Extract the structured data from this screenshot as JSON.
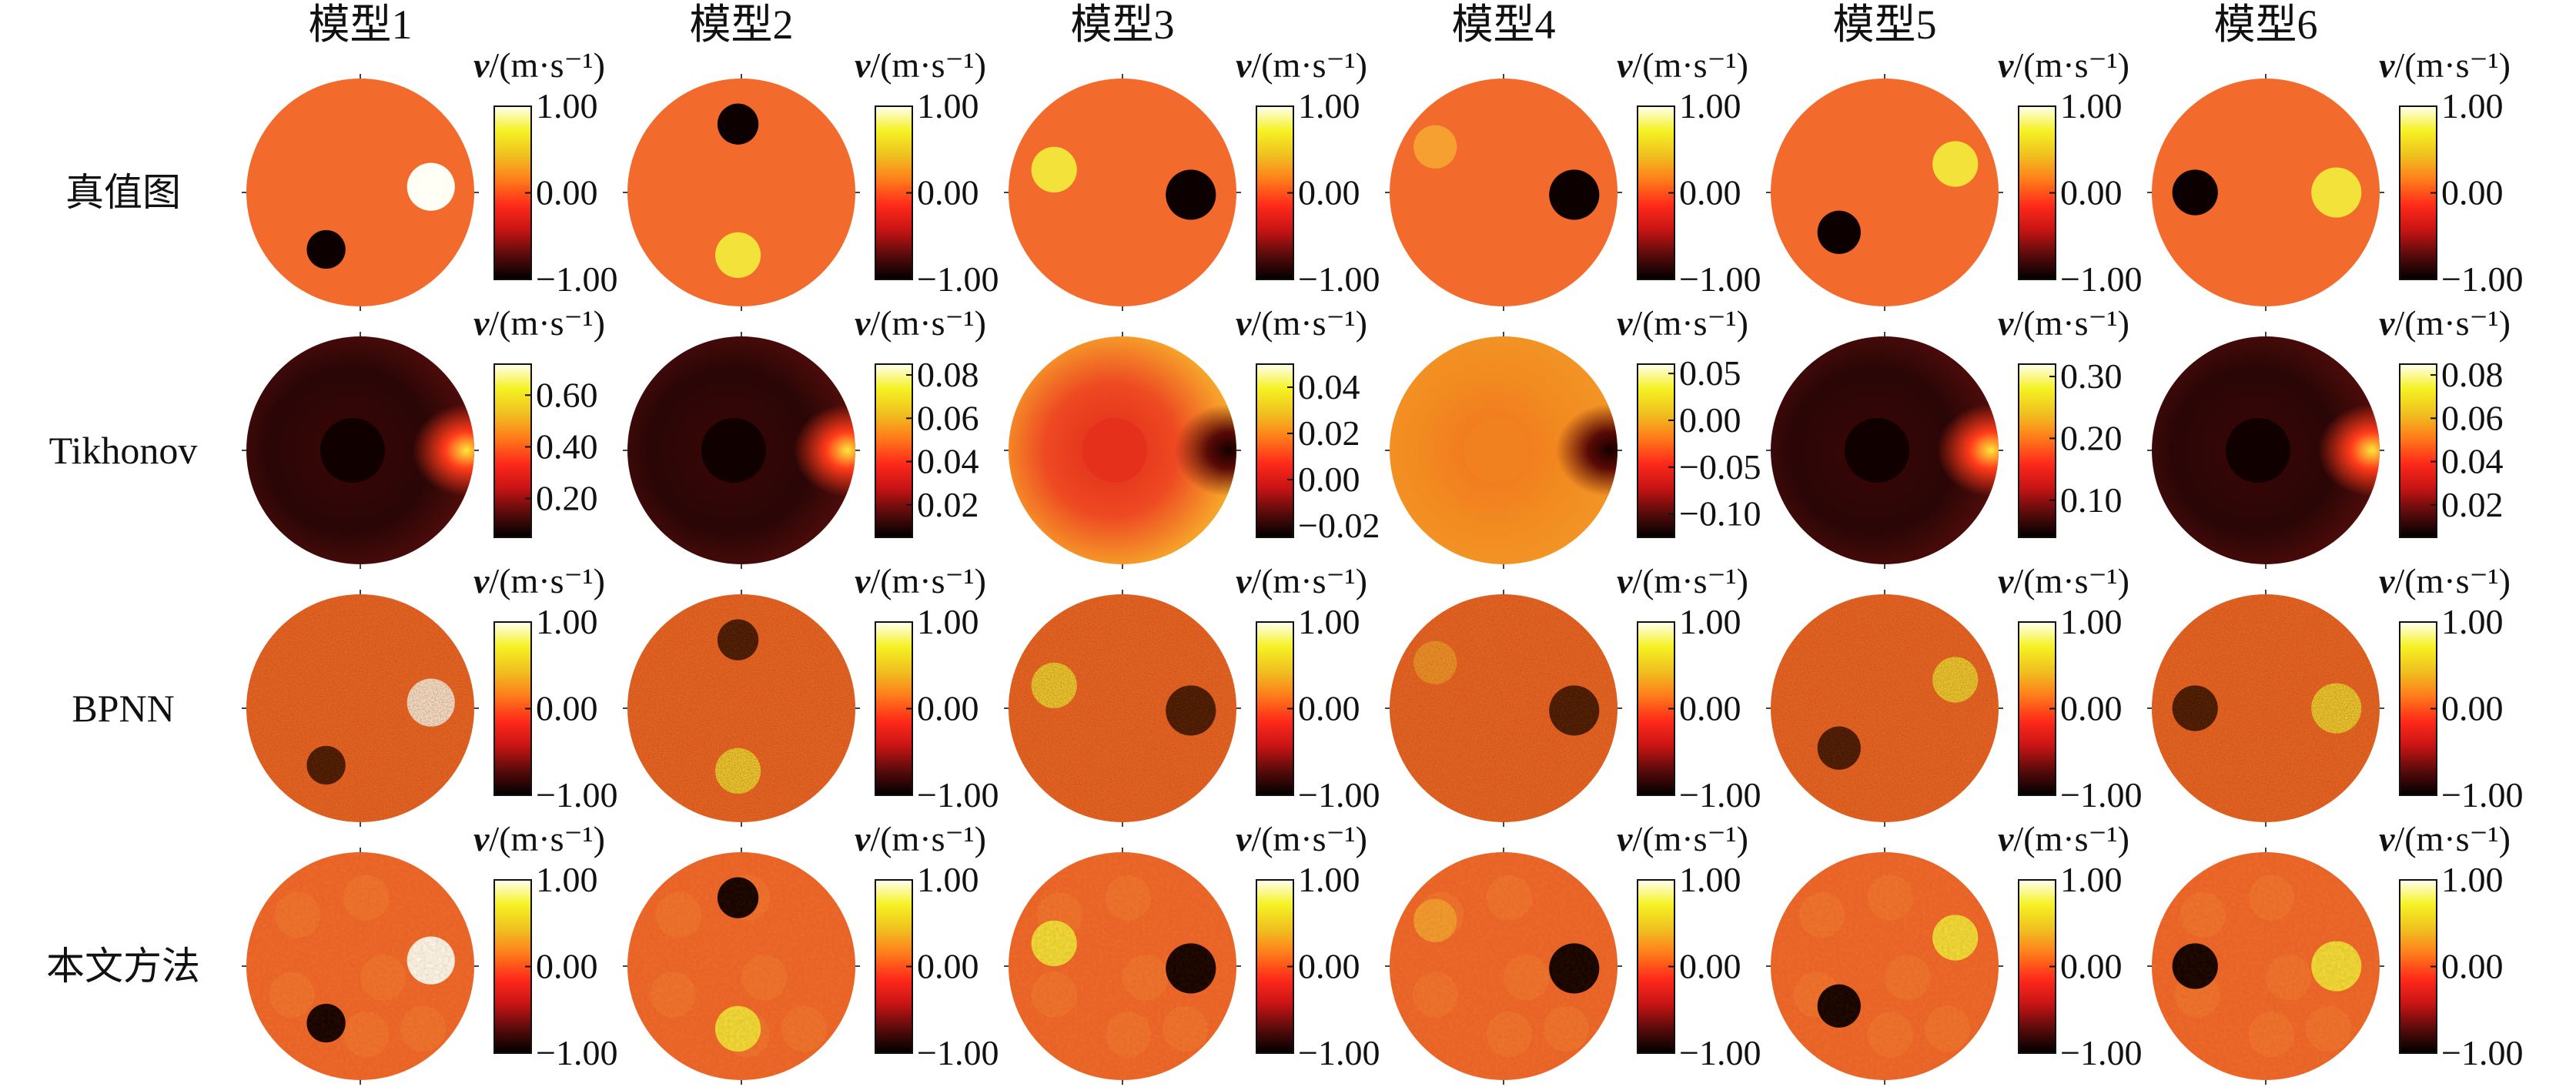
{
  "colors": {
    "background": "#f26a2c",
    "colormap": [
      "#000000",
      "#5a0b0b",
      "#c81414",
      "#ff2a1a",
      "#ff7a1a",
      "#f0c020",
      "#f5f222",
      "#fffff2"
    ]
  },
  "columns": [
    "模型1",
    "模型2",
    "模型3",
    "模型4",
    "模型5",
    "模型6"
  ],
  "rows": [
    {
      "label": "真值图",
      "method": "truth"
    },
    {
      "label": "Tikhonov",
      "method": "tikhonov"
    },
    {
      "label": "BPNN",
      "method": "bpnn"
    },
    {
      "label": "本文方法",
      "method": "proposed"
    }
  ],
  "colorbar_title": {
    "symbol": "v",
    "unit": "/(m·s⁻¹)"
  },
  "panels": [
    [
      {
        "ticks": [
          "1.00",
          "0.00",
          "−1.00"
        ],
        "range": [
          -1,
          1
        ],
        "tick_values": [
          1,
          0,
          -1
        ]
      },
      {
        "ticks": [
          "1.00",
          "0.00",
          "−1.00"
        ],
        "range": [
          -1,
          1
        ],
        "tick_values": [
          1,
          0,
          -1
        ]
      },
      {
        "ticks": [
          "1.00",
          "0.00",
          "−1.00"
        ],
        "range": [
          -1,
          1
        ],
        "tick_values": [
          1,
          0,
          -1
        ]
      },
      {
        "ticks": [
          "1.00",
          "0.00",
          "−1.00"
        ],
        "range": [
          -1,
          1
        ],
        "tick_values": [
          1,
          0,
          -1
        ]
      },
      {
        "ticks": [
          "1.00",
          "0.00",
          "−1.00"
        ],
        "range": [
          -1,
          1
        ],
        "tick_values": [
          1,
          0,
          -1
        ]
      },
      {
        "ticks": [
          "1.00",
          "0.00",
          "−1.00"
        ],
        "range": [
          -1,
          1
        ],
        "tick_values": [
          1,
          0,
          -1
        ]
      }
    ],
    [
      {
        "ticks": [
          "0.60",
          "0.40",
          "0.20"
        ],
        "range": [
          0.05,
          0.72
        ],
        "tick_values": [
          0.6,
          0.4,
          0.2
        ]
      },
      {
        "ticks": [
          "0.08",
          "0.06",
          "0.04",
          "0.02"
        ],
        "range": [
          0.005,
          0.085
        ],
        "tick_values": [
          0.08,
          0.06,
          0.04,
          0.02
        ]
      },
      {
        "ticks": [
          "0.04",
          "0.02",
          "0.00",
          "−0.02"
        ],
        "range": [
          -0.025,
          0.05
        ],
        "tick_values": [
          0.04,
          0.02,
          0.0,
          -0.02
        ]
      },
      {
        "ticks": [
          "0.05",
          "0.00",
          "−0.05",
          "−0.10"
        ],
        "range": [
          -0.125,
          0.06
        ],
        "tick_values": [
          0.05,
          0.0,
          -0.05,
          -0.1
        ]
      },
      {
        "ticks": [
          "0.30",
          "0.20",
          "0.10"
        ],
        "range": [
          0.04,
          0.32
        ],
        "tick_values": [
          0.3,
          0.2,
          0.1
        ]
      },
      {
        "ticks": [
          "0.08",
          "0.06",
          "0.04",
          "0.02"
        ],
        "range": [
          0.005,
          0.085
        ],
        "tick_values": [
          0.08,
          0.06,
          0.04,
          0.02
        ]
      }
    ],
    [
      {
        "ticks": [
          "1.00",
          "0.00",
          "−1.00"
        ],
        "range": [
          -1,
          1
        ],
        "tick_values": [
          1,
          0,
          -1
        ]
      },
      {
        "ticks": [
          "1.00",
          "0.00",
          "−1.00"
        ],
        "range": [
          -1,
          1
        ],
        "tick_values": [
          1,
          0,
          -1
        ]
      },
      {
        "ticks": [
          "1.00",
          "0.00",
          "−1.00"
        ],
        "range": [
          -1,
          1
        ],
        "tick_values": [
          1,
          0,
          -1
        ]
      },
      {
        "ticks": [
          "1.00",
          "0.00",
          "−1.00"
        ],
        "range": [
          -1,
          1
        ],
        "tick_values": [
          1,
          0,
          -1
        ]
      },
      {
        "ticks": [
          "1.00",
          "0.00",
          "−1.00"
        ],
        "range": [
          -1,
          1
        ],
        "tick_values": [
          1,
          0,
          -1
        ]
      },
      {
        "ticks": [
          "1.00",
          "0.00",
          "−1.00"
        ],
        "range": [
          -1,
          1
        ],
        "tick_values": [
          1,
          0,
          -1
        ]
      }
    ],
    [
      {
        "ticks": [
          "1.00",
          "0.00",
          "−1.00"
        ],
        "range": [
          -1,
          1
        ],
        "tick_values": [
          1,
          0,
          -1
        ]
      },
      {
        "ticks": [
          "1.00",
          "0.00",
          "−1.00"
        ],
        "range": [
          -1,
          1
        ],
        "tick_values": [
          1,
          0,
          -1
        ]
      },
      {
        "ticks": [
          "1.00",
          "0.00",
          "−1.00"
        ],
        "range": [
          -1,
          1
        ],
        "tick_values": [
          1,
          0,
          -1
        ]
      },
      {
        "ticks": [
          "1.00",
          "0.00",
          "−1.00"
        ],
        "range": [
          -1,
          1
        ],
        "tick_values": [
          1,
          0,
          -1
        ]
      },
      {
        "ticks": [
          "1.00",
          "0.00",
          "−1.00"
        ],
        "range": [
          -1,
          1
        ],
        "tick_values": [
          1,
          0,
          -1
        ]
      },
      {
        "ticks": [
          "1.00",
          "0.00",
          "−1.00"
        ],
        "range": [
          -1,
          1
        ],
        "tick_values": [
          1,
          0,
          -1
        ]
      }
    ]
  ]
}
